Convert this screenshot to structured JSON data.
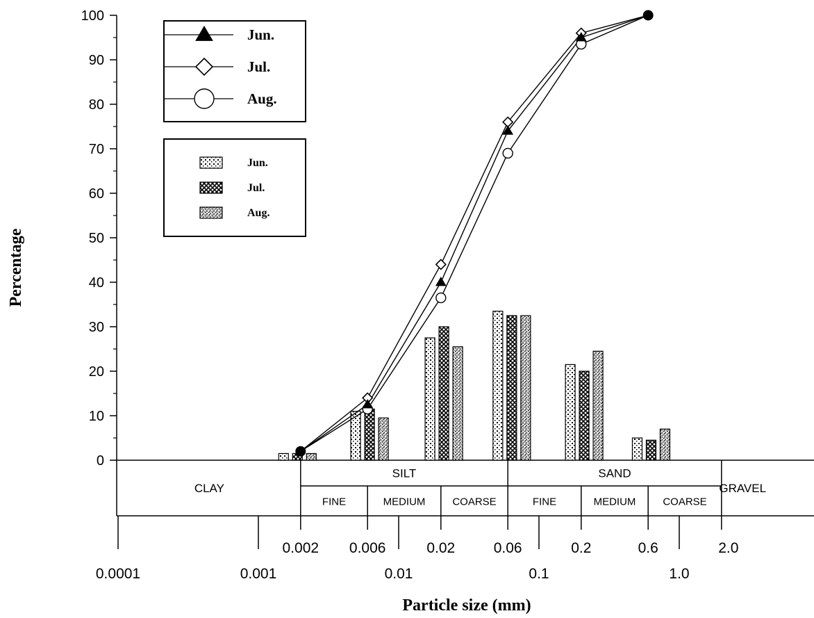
{
  "chart_data": {
    "type": "line",
    "xlabel": "Particle size (mm)",
    "ylabel": "Percentage",
    "xscale": "log",
    "xlim": [
      0.0001,
      2.0
    ],
    "ylim": [
      0,
      100
    ],
    "y_ticks": [
      0,
      10,
      20,
      30,
      40,
      50,
      60,
      70,
      80,
      90,
      100
    ],
    "x_ticks_lower": [
      "0.0001",
      "0.001",
      "0.01",
      "0.1",
      "1.0"
    ],
    "x_ticks_upper": [
      "0.002",
      "0.006",
      "0.02",
      "0.06",
      "0.2",
      "0.6",
      "2.0"
    ],
    "x_tick_values_lower": [
      0.0001,
      0.001,
      0.01,
      0.1,
      1.0
    ],
    "x_tick_values_upper": [
      0.002,
      0.006,
      0.02,
      0.06,
      0.2,
      0.6,
      2.0
    ],
    "cumulative": {
      "x": [
        0.002,
        0.006,
        0.02,
        0.06,
        0.2,
        0.6
      ],
      "series": [
        {
          "name": "Jun.",
          "marker": "triangle",
          "values": [
            2,
            12.5,
            40,
            74,
            95,
            100
          ]
        },
        {
          "name": "Jul.",
          "marker": "diamond",
          "values": [
            2,
            14,
            44,
            76,
            96,
            100
          ]
        },
        {
          "name": "Aug.",
          "marker": "circle",
          "values": [
            2,
            11.5,
            36.5,
            69,
            93.5,
            100
          ]
        }
      ]
    },
    "bars": {
      "group_centers": [
        0.0019,
        0.0062,
        0.021,
        0.064,
        0.21,
        0.63
      ],
      "series": [
        {
          "name": "Jun.",
          "pattern": "dotted",
          "values": [
            1.5,
            11,
            27.5,
            33.5,
            21.5,
            5
          ]
        },
        {
          "name": "Jul.",
          "pattern": "crosshatch",
          "values": [
            1.5,
            11.5,
            30,
            32.5,
            20,
            4.5
          ]
        },
        {
          "name": "Aug.",
          "pattern": "speckled",
          "values": [
            1.5,
            9.5,
            25.5,
            32.5,
            24.5,
            7
          ]
        }
      ]
    },
    "size_classes": {
      "main": [
        {
          "label": "CLAY",
          "from": 0.0001,
          "to": 0.002
        },
        {
          "label": "SILT",
          "from": 0.002,
          "to": 0.06
        },
        {
          "label": "SAND",
          "from": 0.06,
          "to": 2.0
        },
        {
          "label": "GRAVEL",
          "from": 2.0,
          "to": 4.0
        }
      ],
      "sub": [
        {
          "label": "FINE",
          "from": 0.002,
          "to": 0.006
        },
        {
          "label": "MEDIUM",
          "from": 0.006,
          "to": 0.02
        },
        {
          "label": "COARSE",
          "from": 0.02,
          "to": 0.06
        },
        {
          "label": "FINE",
          "from": 0.06,
          "to": 0.2
        },
        {
          "label": "MEDIUM",
          "from": 0.2,
          "to": 0.6
        },
        {
          "label": "COARSE",
          "from": 0.6,
          "to": 2.0
        }
      ]
    },
    "legend_lines": [
      "Jun.",
      "Jul.",
      "Aug."
    ],
    "legend_bars": [
      "Jun.",
      "Jul.",
      "Aug."
    ],
    "legend_placement": "top-left",
    "grid": false
  }
}
